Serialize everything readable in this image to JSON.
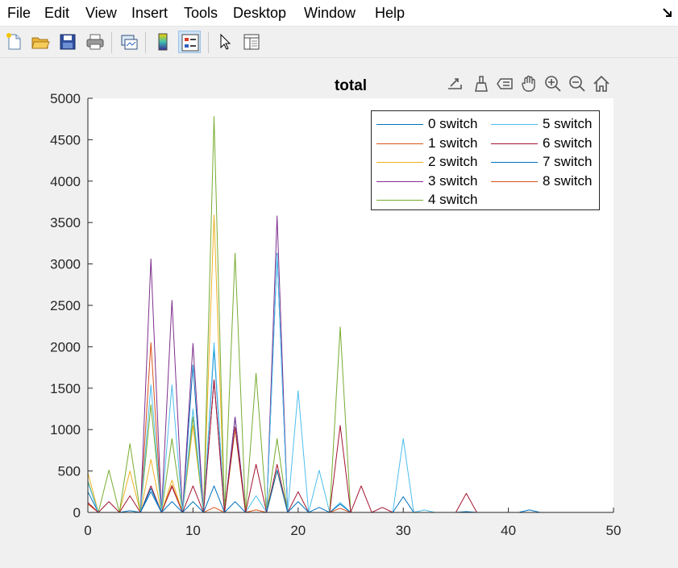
{
  "menu": {
    "items": [
      "File",
      "Edit",
      "View",
      "Insert",
      "Tools",
      "Desktop",
      "Window",
      "Help"
    ]
  },
  "toolbar": {
    "buttons": [
      "new-figure",
      "open-file",
      "save-figure",
      "print-figure",
      "link-plot",
      "insert-colorbar",
      "insert-legend",
      "edit-plot",
      "property-inspector"
    ]
  },
  "axes_toolbar": {
    "buttons": [
      "export-icon",
      "brush-icon",
      "data-tip-icon",
      "pan-icon",
      "zoom-in-icon",
      "zoom-out-icon",
      "home-icon"
    ]
  },
  "chart_data": {
    "type": "line",
    "title": "total",
    "xlabel": "",
    "ylabel": "",
    "xlim": [
      0,
      50
    ],
    "ylim": [
      0,
      5000
    ],
    "xticks": [
      0,
      10,
      20,
      30,
      40,
      50
    ],
    "yticks": [
      0,
      500,
      1000,
      1500,
      2000,
      2500,
      3000,
      3500,
      4000,
      4500,
      5000
    ],
    "grid": false,
    "legend_location": "top-right",
    "legend_columns": 2,
    "x": [
      0,
      1,
      2,
      3,
      4,
      5,
      6,
      7,
      8,
      9,
      10,
      11,
      12,
      13,
      14,
      15,
      16,
      17,
      18,
      19,
      20,
      21,
      22,
      23,
      24,
      25,
      26,
      27,
      28,
      29,
      30,
      31,
      32,
      33,
      34,
      35,
      36,
      37,
      38,
      39,
      40,
      41,
      42,
      43,
      44,
      45,
      46,
      47,
      48
    ],
    "series": [
      {
        "name": "0 switch",
        "color": "#0072bd",
        "values": [
          250,
          0,
          0,
          0,
          0,
          0,
          250,
          0,
          0,
          0,
          1780,
          0,
          1980,
          0,
          1150,
          0,
          0,
          0,
          3130,
          0,
          0,
          0,
          0,
          0,
          0,
          0,
          0,
          0,
          0,
          0,
          0,
          0,
          0,
          0,
          0,
          0,
          0,
          0,
          0,
          0,
          0,
          0,
          0,
          0,
          0,
          0,
          0,
          0,
          0
        ]
      },
      {
        "name": "1 switch",
        "color": "#d95319",
        "values": [
          100,
          0,
          0,
          0,
          0,
          0,
          2050,
          0,
          330,
          0,
          0,
          0,
          60,
          0,
          0,
          0,
          0,
          0,
          0,
          0,
          0,
          0,
          0,
          0,
          0,
          0,
          0,
          0,
          0,
          0,
          0,
          0,
          0,
          0,
          0,
          0,
          0,
          0,
          0,
          0,
          0,
          0,
          0,
          0,
          0,
          0,
          0,
          0,
          0
        ]
      },
      {
        "name": "2 switch",
        "color": "#edb120",
        "values": [
          480,
          0,
          0,
          0,
          500,
          0,
          640,
          0,
          390,
          0,
          1050,
          0,
          3590,
          0,
          1000,
          0,
          0,
          0,
          500,
          0,
          0,
          0,
          0,
          0,
          0,
          0,
          0,
          0,
          0,
          0,
          0,
          0,
          0,
          0,
          0,
          0,
          0,
          0,
          0,
          0,
          0,
          0,
          0,
          0,
          0,
          0,
          0,
          0,
          0
        ]
      },
      {
        "name": "3 switch",
        "color": "#7e2f8e",
        "values": [
          0,
          0,
          0,
          0,
          0,
          0,
          3060,
          0,
          2560,
          0,
          2040,
          0,
          1600,
          0,
          1150,
          0,
          0,
          0,
          3580,
          0,
          0,
          0,
          0,
          0,
          0,
          0,
          0,
          0,
          0,
          0,
          0,
          0,
          0,
          0,
          0,
          0,
          0,
          0,
          0,
          0,
          0,
          0,
          0,
          0,
          0,
          0,
          0,
          0,
          0
        ]
      },
      {
        "name": "4 switch",
        "color": "#77ac30",
        "values": [
          380,
          0,
          510,
          0,
          830,
          0,
          1300,
          0,
          890,
          0,
          1150,
          0,
          4780,
          0,
          3130,
          0,
          1680,
          0,
          890,
          0,
          0,
          0,
          0,
          0,
          2240,
          0,
          0,
          0,
          0,
          0,
          0,
          0,
          0,
          0,
          0,
          0,
          0,
          0,
          0,
          0,
          0,
          0,
          0,
          0,
          0,
          0,
          0,
          0,
          0
        ]
      },
      {
        "name": "5 switch",
        "color": "#4dbeee",
        "values": [
          360,
          0,
          0,
          0,
          0,
          0,
          1540,
          0,
          1540,
          0,
          1250,
          0,
          2050,
          0,
          0,
          0,
          200,
          0,
          3100,
          0,
          1470,
          0,
          510,
          0,
          120,
          0,
          0,
          0,
          0,
          0,
          890,
          0,
          30,
          0,
          0,
          0,
          0,
          0,
          0,
          0,
          0,
          0,
          0,
          0,
          0,
          0,
          0,
          0,
          0
        ]
      },
      {
        "name": "6 switch",
        "color": "#a2142f",
        "values": [
          120,
          0,
          130,
          0,
          200,
          0,
          320,
          0,
          310,
          0,
          320,
          0,
          1600,
          0,
          1030,
          0,
          580,
          0,
          580,
          0,
          250,
          0,
          0,
          0,
          1050,
          0,
          320,
          0,
          60,
          0,
          0,
          0,
          0,
          0,
          0,
          0,
          230,
          0,
          0,
          0,
          0,
          0,
          0,
          0,
          0,
          0,
          0,
          0,
          0
        ]
      },
      {
        "name": "7 switch",
        "color": "#0072bd",
        "values": [
          0,
          0,
          0,
          0,
          20,
          0,
          290,
          0,
          130,
          0,
          130,
          0,
          320,
          0,
          130,
          0,
          0,
          0,
          510,
          0,
          130,
          0,
          60,
          0,
          100,
          0,
          0,
          0,
          0,
          0,
          190,
          0,
          0,
          0,
          0,
          0,
          10,
          0,
          0,
          0,
          0,
          0,
          30,
          0,
          0,
          0,
          0,
          0,
          0
        ]
      },
      {
        "name": "8 switch",
        "color": "#d95319",
        "values": [
          0,
          0,
          0,
          0,
          0,
          0,
          0,
          0,
          0,
          0,
          0,
          0,
          0,
          0,
          0,
          0,
          30,
          0,
          0,
          0,
          0,
          0,
          0,
          0,
          50,
          0,
          0,
          0,
          0,
          0,
          0,
          0,
          0,
          0,
          0,
          0,
          0,
          0,
          0,
          0,
          0,
          0,
          0,
          0,
          0,
          0,
          0,
          0,
          0
        ]
      }
    ]
  }
}
